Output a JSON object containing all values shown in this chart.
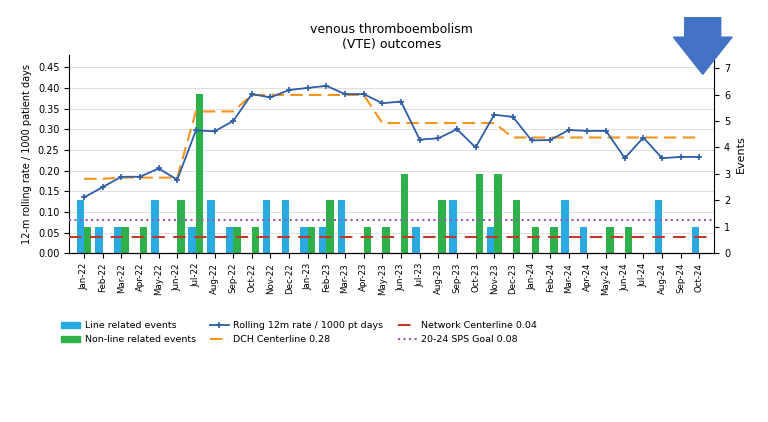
{
  "title": "venous thromboembolism\n(VTE) outcomes",
  "ylabel_left": "12-m rolling rate / 1000 patient days",
  "ylabel_right": "Events",
  "categories": [
    "Jan-22",
    "Feb-22",
    "Mar-22",
    "Apr-22",
    "May-22",
    "Jun-22",
    "Jul-22",
    "Aug-22",
    "Sep-22",
    "Oct-22",
    "Nov-22",
    "Dec-22",
    "Jan-23",
    "Feb-23",
    "Mar-23",
    "Apr-23",
    "May-23",
    "Jun-23",
    "Jul-23",
    "Aug-23",
    "Sep-23",
    "Oct-23",
    "Nov-23",
    "Dec-23",
    "Jan-24",
    "Feb-24",
    "Mar-24",
    "Apr-24",
    "May-24",
    "Jun-24",
    "Jul-24",
    "Aug-24",
    "Sep-24",
    "Oct-24"
  ],
  "rolling_rate": [
    0.135,
    0.16,
    0.185,
    0.185,
    0.205,
    0.178,
    0.297,
    0.295,
    0.32,
    0.385,
    0.377,
    0.395,
    0.4,
    0.405,
    0.385,
    0.385,
    0.363,
    0.367,
    0.275,
    0.278,
    0.3,
    0.256,
    0.335,
    0.33,
    0.273,
    0.274,
    0.298,
    0.296,
    0.296,
    0.23,
    0.28,
    0.23,
    0.233,
    0.233
  ],
  "line_events": [
    2,
    1,
    1,
    0,
    2,
    0,
    1,
    2,
    1,
    0,
    2,
    2,
    1,
    1,
    2,
    0,
    0,
    0,
    1,
    0,
    2,
    0,
    1,
    0,
    0,
    0,
    2,
    1,
    0,
    0,
    0,
    2,
    0,
    1
  ],
  "nonline_events": [
    1,
    0,
    1,
    1,
    0,
    2,
    6,
    0,
    1,
    1,
    0,
    0,
    1,
    2,
    0,
    1,
    1,
    3,
    0,
    2,
    0,
    3,
    3,
    2,
    1,
    1,
    0,
    0,
    1,
    1,
    0,
    0,
    0,
    0
  ],
  "dch_centerline": [
    0.18,
    0.18,
    0.183,
    0.183,
    0.183,
    0.183,
    0.343,
    0.343,
    0.343,
    0.383,
    0.383,
    0.383,
    0.383,
    0.383,
    0.383,
    0.383,
    0.315,
    0.315,
    0.315,
    0.315,
    0.315,
    0.315,
    0.315,
    0.28,
    0.28,
    0.28,
    0.28,
    0.28,
    0.28,
    0.28,
    0.28,
    0.28,
    0.28,
    0.28
  ],
  "network_centerline": 0.04,
  "sps_goal": 0.08,
  "ylim_left": [
    0.0,
    0.48
  ],
  "ylim_right": [
    0,
    7.5
  ],
  "yticks_left": [
    0.0,
    0.05,
    0.1,
    0.15,
    0.2,
    0.25,
    0.3,
    0.35,
    0.4,
    0.45
  ],
  "yticks_right": [
    0,
    1,
    2,
    3,
    4,
    5,
    6,
    7
  ],
  "bar_width": 0.4,
  "color_line_bar": "#29ABE2",
  "color_nonline_bar": "#2EB04A",
  "color_rolling": "#2E5EA8",
  "color_dch": "#F7941D",
  "color_network": "#C0392B",
  "color_sps": "#9B59B6",
  "color_arrow": "#4472C4",
  "background_color": "#FFFFFF",
  "grid_color": "#D9D9D9",
  "legend_order": [
    "line_bar",
    "nonline_bar",
    "rolling",
    "dch",
    "network",
    "sps"
  ],
  "legend_labels": [
    "Line related events",
    "Non-line related events",
    "Rolling 12m rate / 1000 pt days",
    "DCH Centerline 0.28",
    "Network Centerline 0.04",
    "20-24 SPS Goal 0.08"
  ]
}
